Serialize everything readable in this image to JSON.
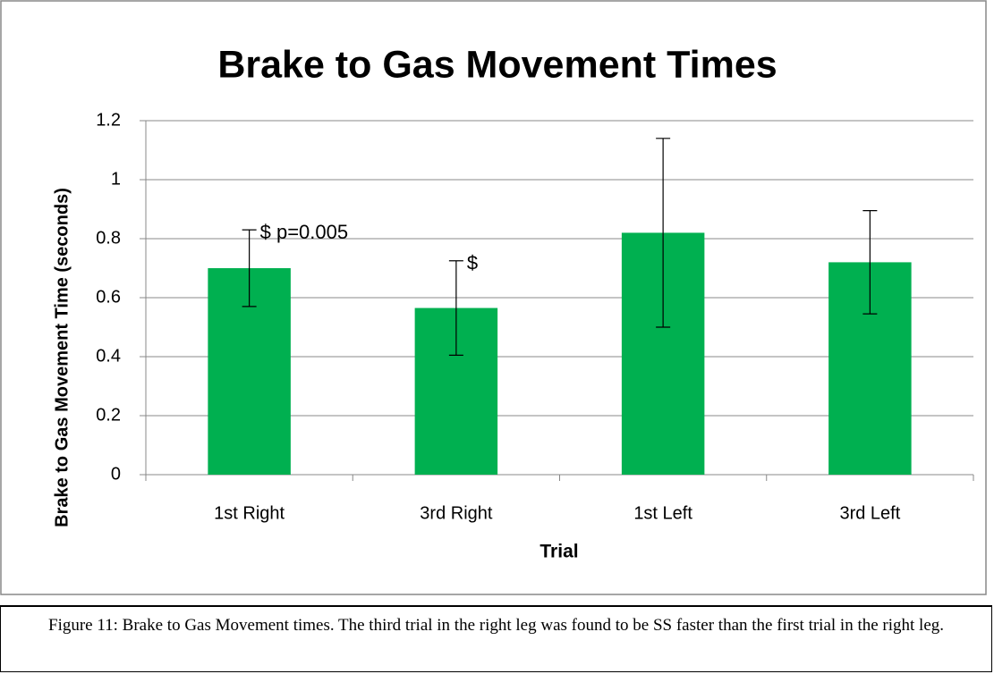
{
  "chart_data": {
    "type": "bar",
    "title": "Brake to Gas Movement Times",
    "x_label": "Trial",
    "y_label": "Brake to Gas Movement Time (seconds)",
    "categories": [
      "1st Right",
      "3rd Right",
      "1st Left",
      "3rd Left"
    ],
    "values": [
      0.7,
      0.565,
      0.82,
      0.72
    ],
    "errors": [
      0.13,
      0.16,
      0.32,
      0.175
    ],
    "color": "#00b050",
    "ylim": [
      0,
      1.2
    ],
    "yticks": [
      0,
      0.2,
      0.4,
      0.6,
      0.8,
      1,
      1.2
    ],
    "grid": true,
    "annotations": [
      "$ p=0.005",
      "$"
    ],
    "caption": "Figure 11: Brake to Gas Movement times. The third trial in the right leg was found to be SS faster than the first trial in the right leg."
  }
}
